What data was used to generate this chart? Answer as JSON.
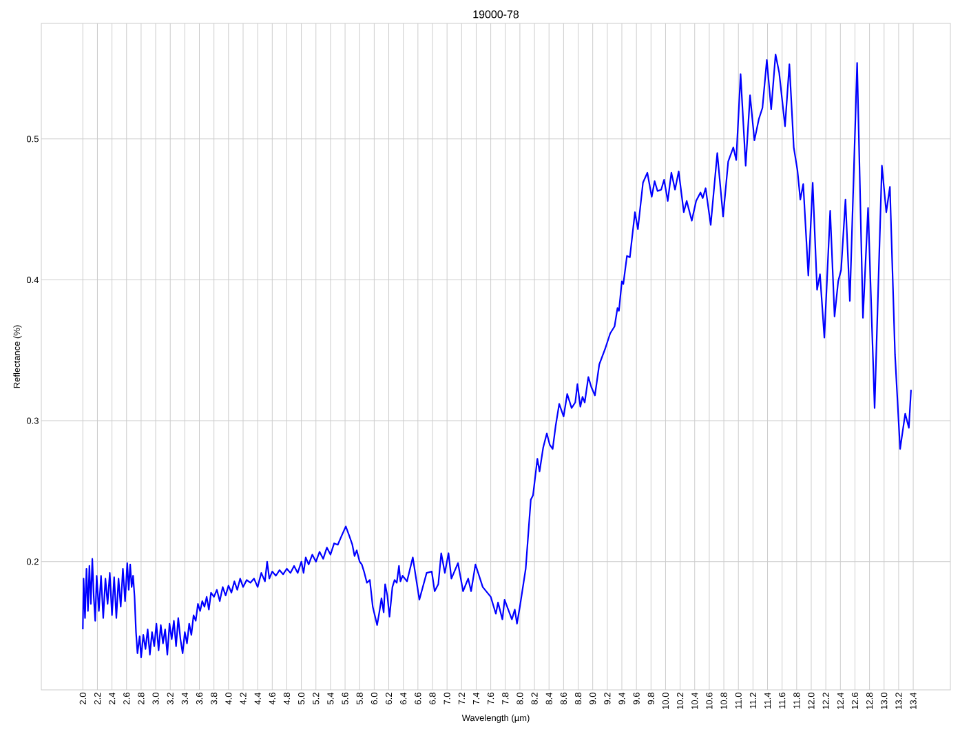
{
  "chart_data": {
    "type": "line",
    "title": "19000-78",
    "xlabel": "Wavelength (µm)",
    "ylabel": "Reflectance (%)",
    "color": "#0000ff",
    "grid": true,
    "xlim": [
      1.43,
      13.91
    ],
    "ylim": [
      0.109,
      0.582
    ],
    "xticks": [
      {
        "value": 2,
        "label": "2.0"
      },
      {
        "value": 2.2,
        "label": "2.2"
      },
      {
        "value": 2.4,
        "label": "2.4"
      },
      {
        "value": 2.6,
        "label": "2.6"
      },
      {
        "value": 2.8,
        "label": "2.8"
      },
      {
        "value": 3,
        "label": "3.0"
      },
      {
        "value": 3.2,
        "label": "3.2"
      },
      {
        "value": 3.4,
        "label": "3.4"
      },
      {
        "value": 3.6,
        "label": "3.6"
      },
      {
        "value": 3.8,
        "label": "3.8"
      },
      {
        "value": 4,
        "label": "4.0"
      },
      {
        "value": 4.2,
        "label": "4.2"
      },
      {
        "value": 4.4,
        "label": "4.4"
      },
      {
        "value": 4.6,
        "label": "4.6"
      },
      {
        "value": 4.8,
        "label": "4.8"
      },
      {
        "value": 5,
        "label": "5.0"
      },
      {
        "value": 5.2,
        "label": "5.2"
      },
      {
        "value": 5.4,
        "label": "5.4"
      },
      {
        "value": 5.6,
        "label": "5.6"
      },
      {
        "value": 5.8,
        "label": "5.8"
      },
      {
        "value": 6,
        "label": "6.0"
      },
      {
        "value": 6.2,
        "label": "6.2"
      },
      {
        "value": 6.4,
        "label": "6.4"
      },
      {
        "value": 6.6,
        "label": "6.6"
      },
      {
        "value": 6.8,
        "label": "6.8"
      },
      {
        "value": 7,
        "label": "7.0"
      },
      {
        "value": 7.2,
        "label": "7.2"
      },
      {
        "value": 7.4,
        "label": "7.4"
      },
      {
        "value": 7.6,
        "label": "7.6"
      },
      {
        "value": 7.8,
        "label": "7.8"
      },
      {
        "value": 8,
        "label": "8.0"
      },
      {
        "value": 8.2,
        "label": "8.2"
      },
      {
        "value": 8.4,
        "label": "8.4"
      },
      {
        "value": 8.6,
        "label": "8.6"
      },
      {
        "value": 8.8,
        "label": "8.8"
      },
      {
        "value": 9,
        "label": "9.0"
      },
      {
        "value": 9.2,
        "label": "9.2"
      },
      {
        "value": 9.4,
        "label": "9.4"
      },
      {
        "value": 9.6,
        "label": "9.6"
      },
      {
        "value": 9.8,
        "label": "9.8"
      },
      {
        "value": 10,
        "label": "10.0"
      },
      {
        "value": 10.2,
        "label": "10.2"
      },
      {
        "value": 10.4,
        "label": "10.4"
      },
      {
        "value": 10.6,
        "label": "10.6"
      },
      {
        "value": 10.8,
        "label": "10.8"
      },
      {
        "value": 11,
        "label": "11.0"
      },
      {
        "value": 11.2,
        "label": "11.2"
      },
      {
        "value": 11.4,
        "label": "11.4"
      },
      {
        "value": 11.6,
        "label": "11.6"
      },
      {
        "value": 11.8,
        "label": "11.8"
      },
      {
        "value": 12,
        "label": "12.0"
      },
      {
        "value": 12.2,
        "label": "12.2"
      },
      {
        "value": 12.4,
        "label": "12.4"
      },
      {
        "value": 12.6,
        "label": "12.6"
      },
      {
        "value": 12.8,
        "label": "12.8"
      },
      {
        "value": 13,
        "label": "13.0"
      },
      {
        "value": 13.2,
        "label": "13.2"
      },
      {
        "value": 13.4,
        "label": "13.4"
      }
    ],
    "yticks": [
      0.2,
      0.3,
      0.4,
      0.5
    ],
    "x": [
      2.0,
      2.01,
      2.03,
      2.05,
      2.07,
      2.09,
      2.11,
      2.13,
      2.15,
      2.17,
      2.19,
      2.22,
      2.25,
      2.28,
      2.31,
      2.34,
      2.37,
      2.4,
      2.43,
      2.46,
      2.49,
      2.52,
      2.55,
      2.58,
      2.61,
      2.63,
      2.65,
      2.67,
      2.69,
      2.71,
      2.73,
      2.75,
      2.78,
      2.8,
      2.83,
      2.86,
      2.89,
      2.92,
      2.95,
      2.98,
      3.01,
      3.04,
      3.07,
      3.1,
      3.13,
      3.16,
      3.19,
      3.22,
      3.25,
      3.28,
      3.31,
      3.34,
      3.37,
      3.4,
      3.43,
      3.46,
      3.49,
      3.52,
      3.55,
      3.58,
      3.61,
      3.64,
      3.67,
      3.7,
      3.73,
      3.76,
      3.8,
      3.84,
      3.88,
      3.92,
      3.96,
      4.0,
      4.04,
      4.08,
      4.12,
      4.16,
      4.2,
      4.25,
      4.3,
      4.35,
      4.4,
      4.45,
      4.5,
      4.53,
      4.56,
      4.6,
      4.65,
      4.7,
      4.75,
      4.8,
      4.85,
      4.9,
      4.95,
      5.0,
      5.03,
      5.06,
      5.1,
      5.15,
      5.2,
      5.25,
      5.3,
      5.35,
      5.4,
      5.45,
      5.5,
      5.55,
      5.61,
      5.66,
      5.7,
      5.73,
      5.76,
      5.8,
      5.83,
      5.86,
      5.9,
      5.94,
      5.98,
      6.04,
      6.07,
      6.1,
      6.13,
      6.15,
      6.18,
      6.21,
      6.25,
      6.28,
      6.31,
      6.34,
      6.36,
      6.39,
      6.45,
      6.53,
      6.62,
      6.72,
      6.79,
      6.83,
      6.88,
      6.92,
      6.97,
      7.02,
      7.06,
      7.15,
      7.22,
      7.29,
      7.33,
      7.39,
      7.49,
      7.6,
      7.67,
      7.7,
      7.76,
      7.79,
      7.89,
      7.93,
      7.96,
      8.0,
      8.08,
      8.15,
      8.18,
      8.24,
      8.27,
      8.32,
      8.37,
      8.41,
      8.45,
      8.49,
      8.54,
      8.6,
      8.65,
      8.71,
      8.76,
      8.79,
      8.83,
      8.86,
      8.89,
      8.94,
      8.98,
      9.03,
      9.09,
      9.17,
      9.24,
      9.3,
      9.34,
      9.36,
      9.4,
      9.42,
      9.47,
      9.51,
      9.58,
      9.62,
      9.69,
      9.75,
      9.81,
      9.85,
      9.89,
      9.94,
      9.98,
      10.03,
      10.08,
      10.13,
      10.18,
      10.25,
      10.29,
      10.36,
      10.42,
      10.48,
      10.51,
      10.55,
      10.62,
      10.71,
      10.79,
      10.86,
      10.93,
      10.97,
      11.03,
      11.1,
      11.16,
      11.22,
      11.28,
      11.33,
      11.39,
      11.45,
      11.51,
      11.56,
      11.64,
      11.7,
      11.76,
      11.81,
      11.85,
      11.89,
      11.96,
      12.02,
      12.08,
      12.12,
      12.18,
      12.26,
      12.32,
      12.37,
      12.41,
      12.47,
      12.53,
      12.63,
      12.71,
      12.78,
      12.87,
      12.97,
      13.03,
      13.08,
      13.15,
      13.22,
      13.29,
      13.34,
      13.37
    ],
    "values": [
      0.152,
      0.188,
      0.16,
      0.195,
      0.165,
      0.197,
      0.17,
      0.202,
      0.175,
      0.158,
      0.19,
      0.165,
      0.19,
      0.16,
      0.188,
      0.17,
      0.192,
      0.162,
      0.189,
      0.16,
      0.188,
      0.168,
      0.195,
      0.172,
      0.199,
      0.18,
      0.198,
      0.182,
      0.19,
      0.175,
      0.15,
      0.135,
      0.147,
      0.132,
      0.148,
      0.138,
      0.152,
      0.134,
      0.15,
      0.14,
      0.156,
      0.137,
      0.155,
      0.142,
      0.152,
      0.134,
      0.156,
      0.145,
      0.158,
      0.14,
      0.16,
      0.145,
      0.135,
      0.15,
      0.142,
      0.156,
      0.148,
      0.162,
      0.158,
      0.17,
      0.165,
      0.172,
      0.168,
      0.175,
      0.166,
      0.178,
      0.175,
      0.18,
      0.172,
      0.182,
      0.176,
      0.183,
      0.178,
      0.186,
      0.18,
      0.188,
      0.182,
      0.187,
      0.185,
      0.188,
      0.182,
      0.192,
      0.186,
      0.2,
      0.188,
      0.193,
      0.19,
      0.194,
      0.191,
      0.195,
      0.192,
      0.197,
      0.192,
      0.2,
      0.192,
      0.203,
      0.198,
      0.205,
      0.2,
      0.207,
      0.202,
      0.21,
      0.205,
      0.213,
      0.212,
      0.218,
      0.225,
      0.218,
      0.212,
      0.204,
      0.208,
      0.2,
      0.198,
      0.193,
      0.185,
      0.187,
      0.168,
      0.155,
      0.164,
      0.174,
      0.164,
      0.184,
      0.176,
      0.161,
      0.182,
      0.187,
      0.185,
      0.197,
      0.186,
      0.19,
      0.186,
      0.203,
      0.173,
      0.192,
      0.193,
      0.179,
      0.184,
      0.206,
      0.192,
      0.206,
      0.188,
      0.199,
      0.179,
      0.188,
      0.179,
      0.198,
      0.182,
      0.175,
      0.163,
      0.171,
      0.159,
      0.173,
      0.159,
      0.166,
      0.156,
      0.168,
      0.195,
      0.244,
      0.247,
      0.273,
      0.264,
      0.281,
      0.291,
      0.283,
      0.28,
      0.296,
      0.312,
      0.303,
      0.319,
      0.309,
      0.313,
      0.326,
      0.31,
      0.317,
      0.313,
      0.331,
      0.324,
      0.318,
      0.34,
      0.351,
      0.362,
      0.367,
      0.38,
      0.378,
      0.399,
      0.397,
      0.417,
      0.416,
      0.448,
      0.436,
      0.469,
      0.476,
      0.459,
      0.47,
      0.463,
      0.464,
      0.471,
      0.456,
      0.476,
      0.464,
      0.477,
      0.448,
      0.456,
      0.442,
      0.456,
      0.462,
      0.458,
      0.465,
      0.439,
      0.49,
      0.445,
      0.484,
      0.494,
      0.485,
      0.546,
      0.481,
      0.531,
      0.499,
      0.514,
      0.522,
      0.556,
      0.521,
      0.56,
      0.547,
      0.509,
      0.553,
      0.494,
      0.478,
      0.457,
      0.468,
      0.403,
      0.469,
      0.393,
      0.404,
      0.359,
      0.449,
      0.374,
      0.399,
      0.407,
      0.457,
      0.385,
      0.554,
      0.373,
      0.451,
      0.309,
      0.481,
      0.448,
      0.466,
      0.347,
      0.28,
      0.305,
      0.295,
      0.322
    ]
  }
}
